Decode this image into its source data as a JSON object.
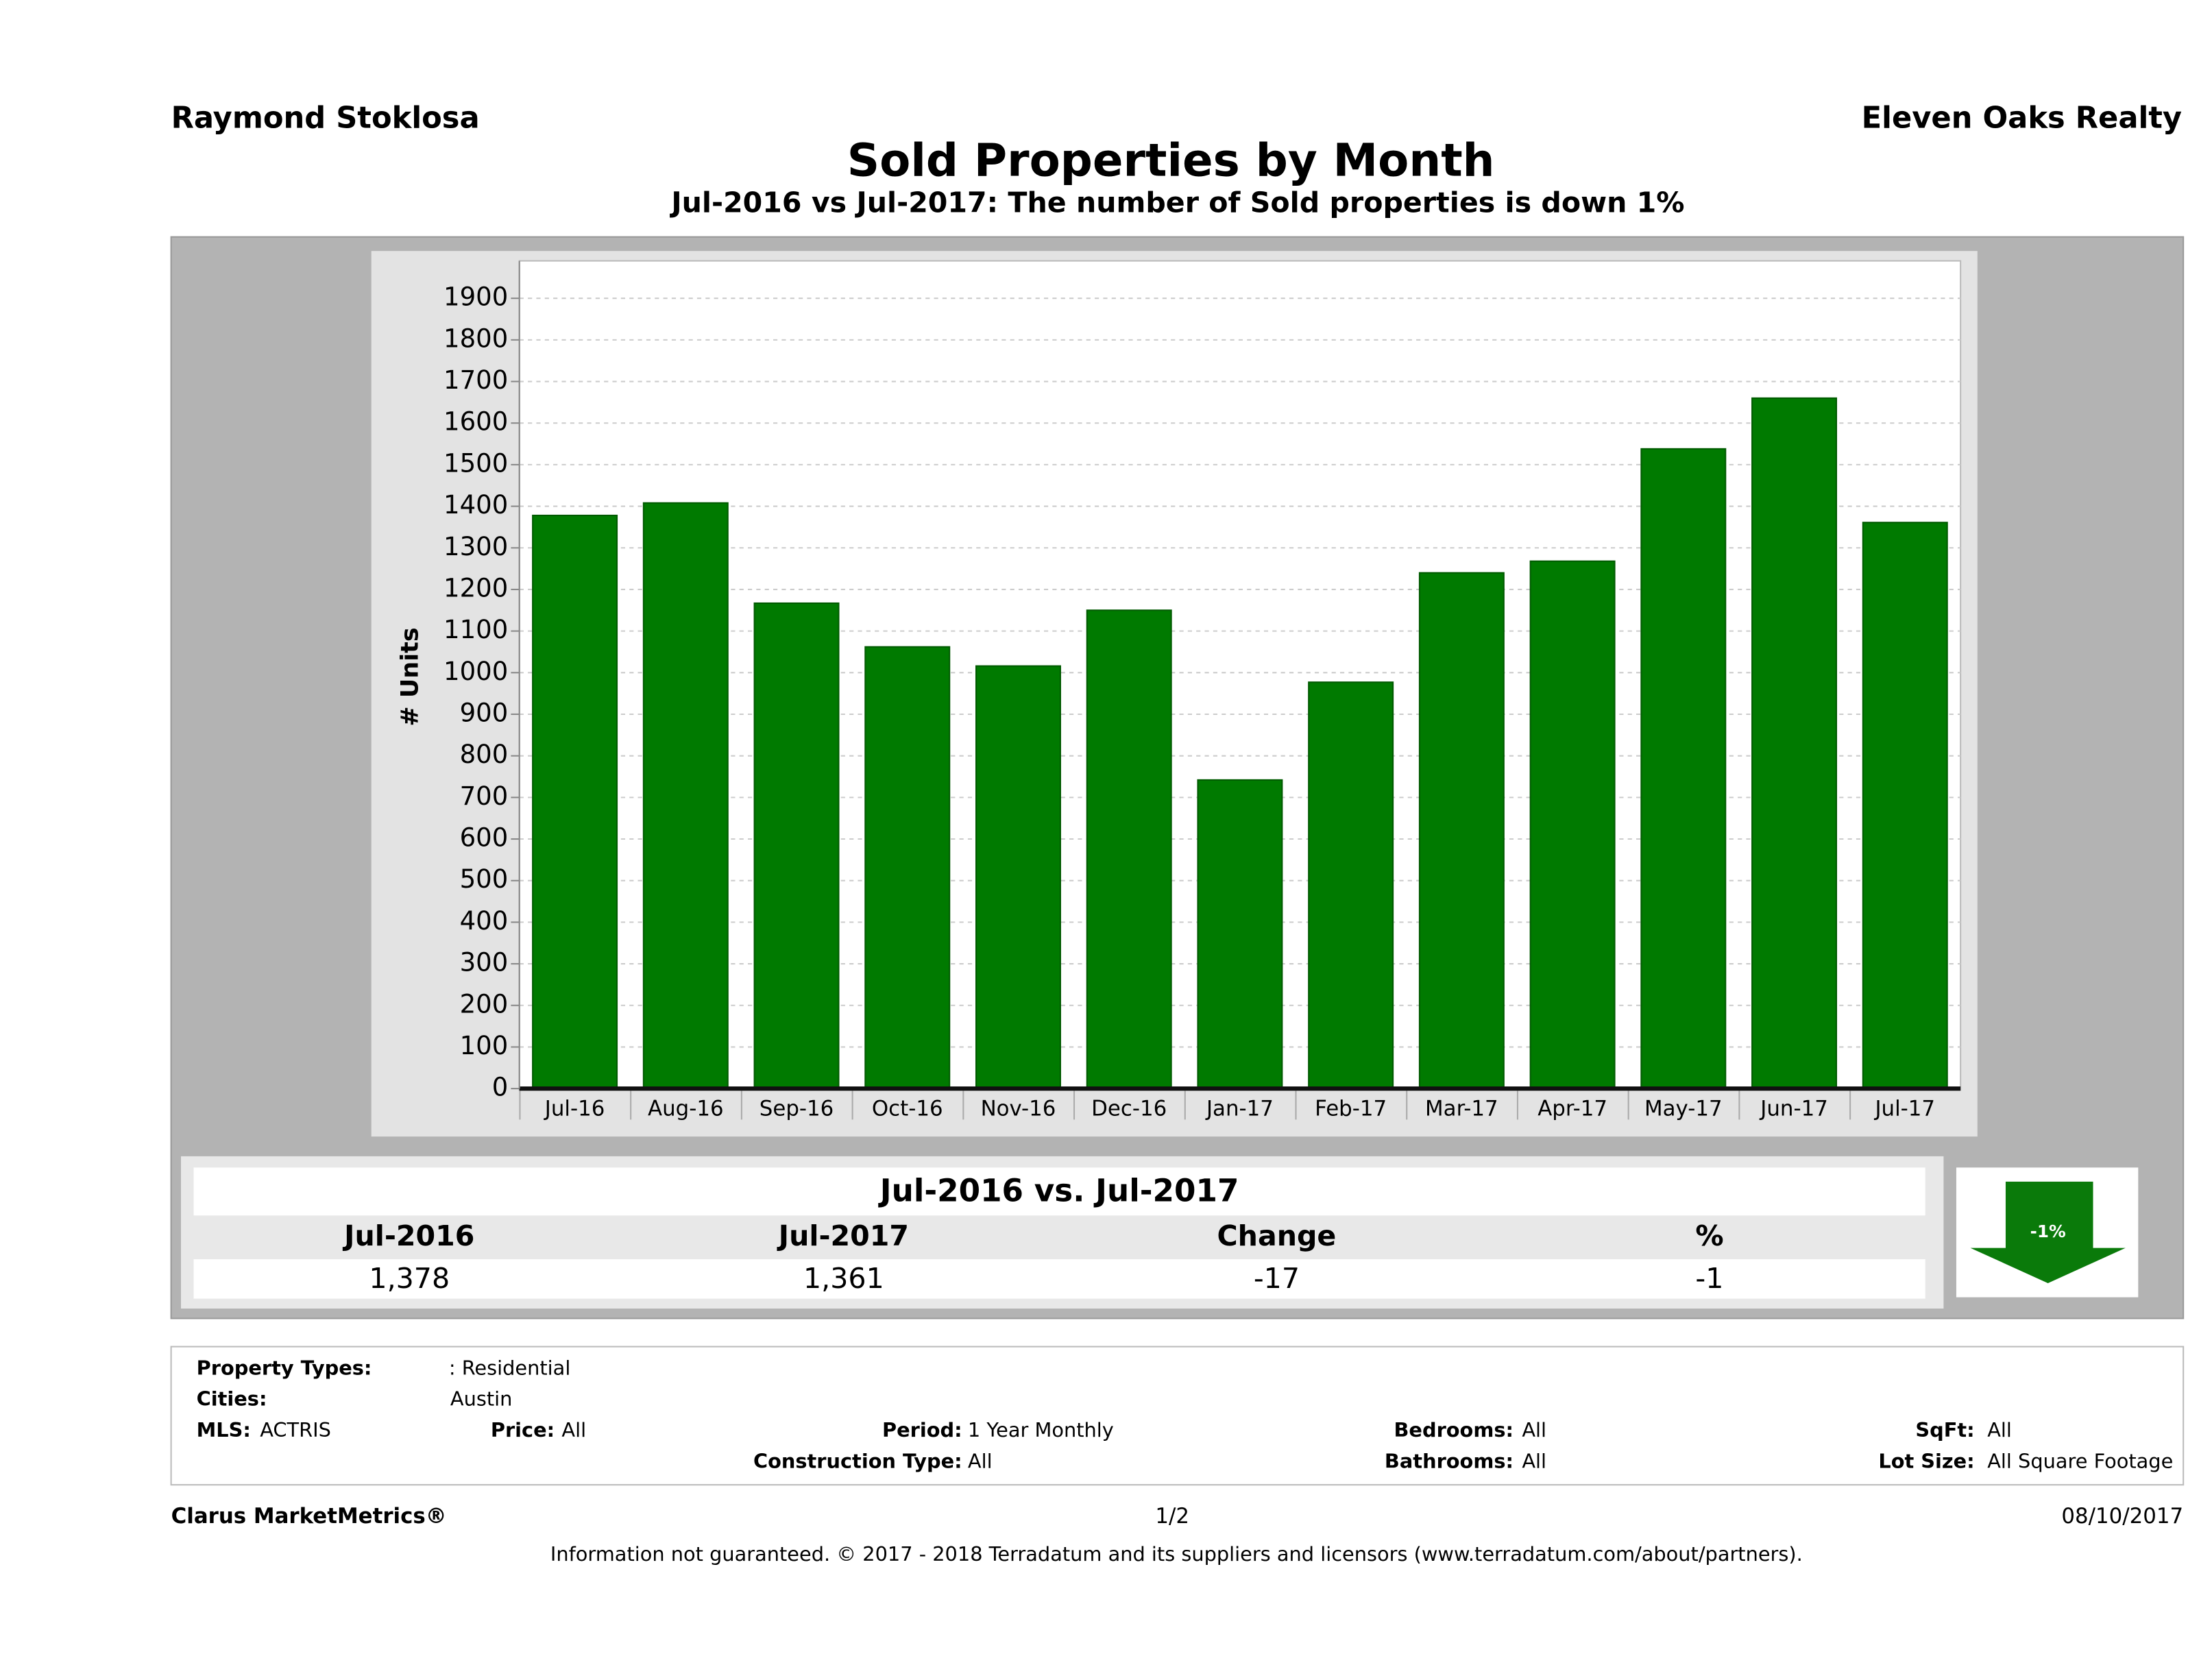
{
  "header": {
    "agent": "Raymond Stoklosa",
    "company": "Eleven Oaks Realty"
  },
  "chart_data": {
    "type": "bar",
    "title": "Sold Properties by Month",
    "subtitle": "Jul-2016 vs Jul-2017: The number of Sold  properties is down 1%",
    "y_label": "# Units",
    "categories": [
      "Jul-16",
      "Aug-16",
      "Sep-16",
      "Oct-16",
      "Nov-16",
      "Dec-16",
      "Jan-17",
      "Feb-17",
      "Mar-17",
      "Apr-17",
      "May-17",
      "Jun-17",
      "Jul-17"
    ],
    "values": [
      1378,
      1408,
      1167,
      1062,
      1016,
      1150,
      742,
      977,
      1240,
      1268,
      1538,
      1660,
      1361
    ],
    "color": "#007a00",
    "ylim": [
      0,
      1990
    ],
    "yticks": [
      0,
      100,
      200,
      300,
      400,
      500,
      600,
      700,
      800,
      900,
      1000,
      1100,
      1200,
      1300,
      1400,
      1500,
      1600,
      1700,
      1800,
      1900
    ],
    "grid": true
  },
  "summary": {
    "title": "Jul-2016 vs. Jul-2017",
    "headers": [
      "Jul-2016",
      "Jul-2017",
      "Change",
      "%"
    ],
    "values": [
      "1,378",
      "1,361",
      "-17",
      "-1"
    ],
    "badge": "-1%"
  },
  "filters": {
    "property_types": {
      "label": "Property Types:",
      "value": ": Residential"
    },
    "cities": {
      "label": "Cities:",
      "value": "Austin"
    },
    "mls": {
      "label": "MLS:",
      "value": "ACTRIS"
    },
    "price": {
      "label": "Price:",
      "value": "All"
    },
    "period": {
      "label": "Period:",
      "value": "1 Year Monthly"
    },
    "bedrooms": {
      "label": "Bedrooms:",
      "value": "All"
    },
    "sqft": {
      "label": "SqFt:",
      "value": "All"
    },
    "construction": {
      "label": "Construction Type:",
      "value": "All"
    },
    "bathrooms": {
      "label": "Bathrooms:",
      "value": "All"
    },
    "lot_size": {
      "label": "Lot Size:",
      "value": "All Square Footage"
    }
  },
  "footer": {
    "brand": "Clarus MarketMetrics®",
    "page": "1/2",
    "date": "08/10/2017",
    "disclaimer": "Information not guaranteed. © 2017 - 2018 Terradatum and its suppliers and licensors (www.terradatum.com/about/partners)."
  }
}
